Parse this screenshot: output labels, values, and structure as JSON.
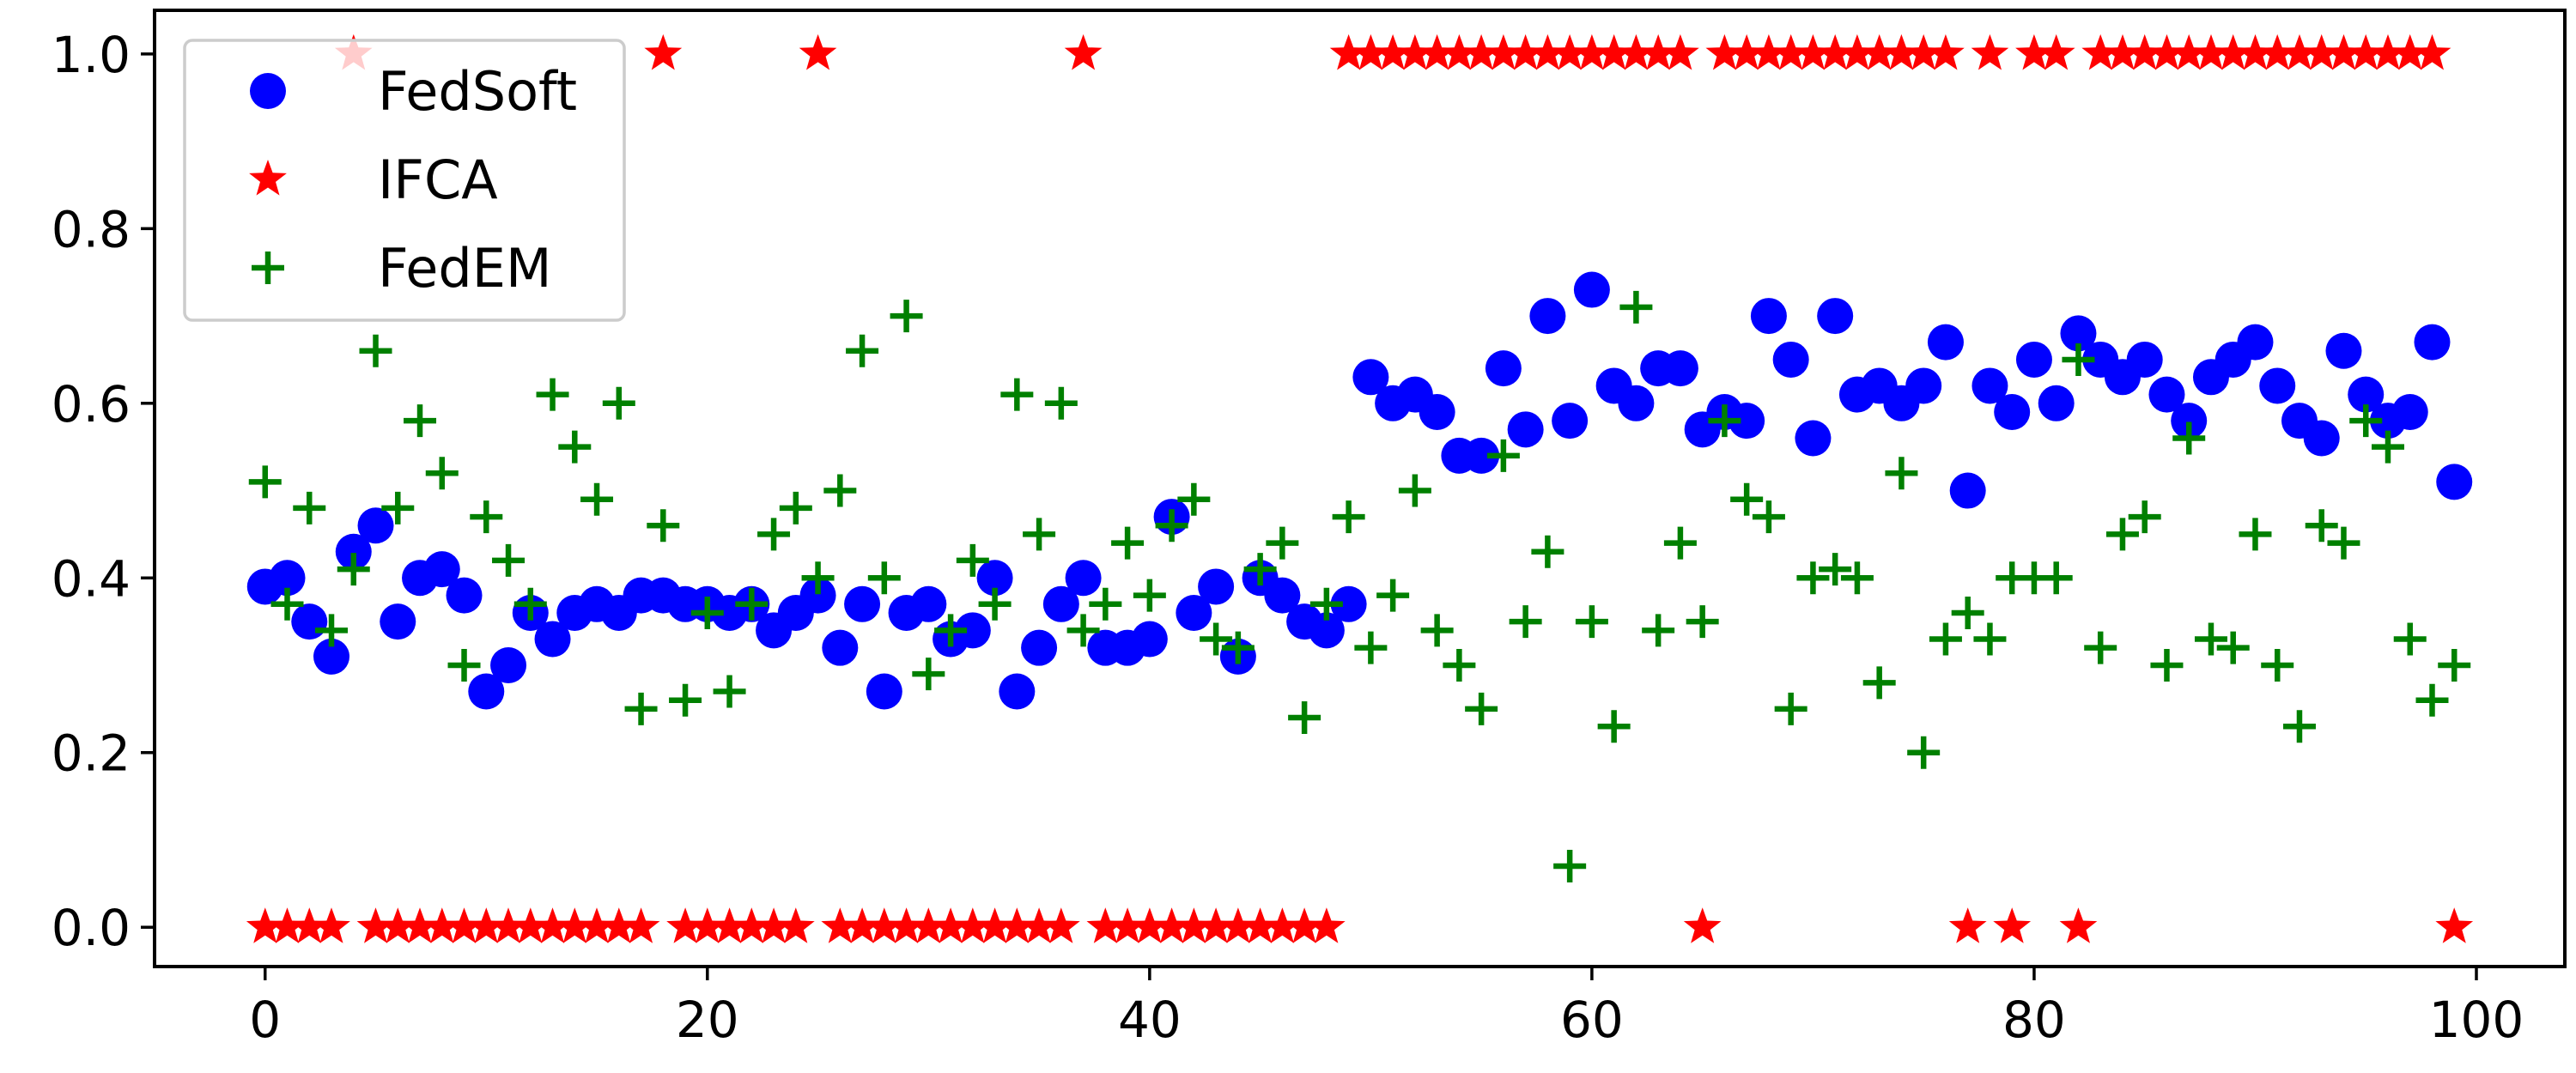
{
  "chart_data": {
    "type": "scatter",
    "title": "",
    "xlabel": "",
    "ylabel": "",
    "xlim": [
      -5,
      104
    ],
    "ylim": [
      -0.045,
      1.05
    ],
    "grid": false,
    "legend_position": "top-left",
    "x_ticks": [
      0,
      20,
      40,
      60,
      80,
      100
    ],
    "x_tick_labels": [
      "0",
      "20",
      "40",
      "60",
      "80",
      "100"
    ],
    "y_ticks": [
      0.0,
      0.2,
      0.4,
      0.6,
      0.8,
      1.0
    ],
    "y_tick_labels": [
      "0.0",
      "0.2",
      "0.4",
      "0.6",
      "0.8",
      "1.0"
    ],
    "x": [
      0,
      1,
      2,
      3,
      4,
      5,
      6,
      7,
      8,
      9,
      10,
      11,
      12,
      13,
      14,
      15,
      16,
      17,
      18,
      19,
      20,
      21,
      22,
      23,
      24,
      25,
      26,
      27,
      28,
      29,
      30,
      31,
      32,
      33,
      34,
      35,
      36,
      37,
      38,
      39,
      40,
      41,
      42,
      43,
      44,
      45,
      46,
      47,
      48,
      49,
      50,
      51,
      52,
      53,
      54,
      55,
      56,
      57,
      58,
      59,
      60,
      61,
      62,
      63,
      64,
      65,
      66,
      67,
      68,
      69,
      70,
      71,
      72,
      73,
      74,
      75,
      76,
      77,
      78,
      79,
      80,
      81,
      82,
      83,
      84,
      85,
      86,
      87,
      88,
      89,
      90,
      91,
      92,
      93,
      94,
      95,
      96,
      97,
      98,
      99
    ],
    "series": [
      {
        "name": "FedSoft",
        "marker": "circle",
        "color": "#0000ff",
        "values": [
          0.39,
          0.4,
          0.35,
          0.31,
          0.43,
          0.46,
          0.35,
          0.4,
          0.41,
          0.38,
          0.27,
          0.3,
          0.36,
          0.33,
          0.36,
          0.37,
          0.36,
          0.38,
          0.38,
          0.37,
          0.37,
          0.36,
          0.37,
          0.34,
          0.36,
          0.38,
          0.32,
          0.37,
          0.27,
          0.36,
          0.37,
          0.33,
          0.34,
          0.4,
          0.27,
          0.32,
          0.37,
          0.4,
          0.32,
          0.32,
          0.33,
          0.47,
          0.36,
          0.39,
          0.31,
          0.4,
          0.38,
          0.35,
          0.34,
          0.37,
          0.63,
          0.6,
          0.61,
          0.59,
          0.54,
          0.54,
          0.64,
          0.57,
          0.7,
          0.58,
          0.73,
          0.62,
          0.6,
          0.64,
          0.64,
          0.57,
          0.59,
          0.58,
          0.7,
          0.65,
          0.56,
          0.7,
          0.61,
          0.62,
          0.6,
          0.62,
          0.67,
          0.5,
          0.62,
          0.59,
          0.65,
          0.6,
          0.68,
          0.65,
          0.63,
          0.65,
          0.61,
          0.58,
          0.63,
          0.65,
          0.67,
          0.62,
          0.58,
          0.56,
          0.66,
          0.61,
          0.58,
          0.59,
          0.67,
          0.51
        ]
      },
      {
        "name": "IFCA",
        "marker": "star",
        "color": "#ff0000",
        "values": [
          0,
          0,
          0,
          0,
          1,
          0,
          0,
          0,
          0,
          0,
          0,
          0,
          0,
          0,
          0,
          0,
          0,
          0,
          1,
          0,
          0,
          0,
          0,
          0,
          0,
          1,
          0,
          0,
          0,
          0,
          0,
          0,
          0,
          0,
          0,
          0,
          0,
          1,
          0,
          0,
          0,
          0,
          0,
          0,
          0,
          0,
          0,
          0,
          0,
          1,
          1,
          1,
          1,
          1,
          1,
          1,
          1,
          1,
          1,
          1,
          1,
          1,
          1,
          1,
          1,
          0,
          1,
          1,
          1,
          1,
          1,
          1,
          1,
          1,
          1,
          1,
          1,
          0,
          1,
          0,
          1,
          1,
          0,
          1,
          1,
          1,
          1,
          1,
          1,
          1,
          1,
          1,
          1,
          1,
          1,
          1,
          1,
          1,
          1,
          0
        ]
      },
      {
        "name": "FedEM",
        "marker": "plus",
        "color": "#008000",
        "values": [
          0.51,
          0.37,
          0.48,
          0.34,
          0.41,
          0.66,
          0.48,
          0.58,
          0.52,
          0.3,
          0.47,
          0.42,
          0.37,
          0.61,
          0.55,
          0.49,
          0.6,
          0.25,
          0.46,
          0.26,
          0.36,
          0.27,
          0.37,
          0.45,
          0.48,
          0.4,
          0.5,
          0.66,
          0.4,
          0.7,
          0.29,
          0.34,
          0.42,
          0.37,
          0.61,
          0.45,
          0.6,
          0.34,
          0.37,
          0.44,
          0.38,
          0.46,
          0.49,
          0.33,
          0.32,
          0.41,
          0.44,
          0.24,
          0.37,
          0.47,
          0.32,
          0.38,
          0.5,
          0.34,
          0.3,
          0.25,
          0.54,
          0.35,
          0.43,
          0.07,
          0.35,
          0.23,
          0.71,
          0.34,
          0.44,
          0.35,
          0.58,
          0.49,
          0.47,
          0.25,
          0.4,
          0.41,
          0.4,
          0.28,
          0.52,
          0.2,
          0.33,
          0.36,
          0.33,
          0.4,
          0.4,
          0.4,
          0.65,
          0.32,
          0.45,
          0.47,
          0.3,
          0.56,
          0.33,
          0.32,
          0.45,
          0.3,
          0.23,
          0.46,
          0.44,
          0.58,
          0.55,
          0.33,
          0.26,
          0.3
        ]
      }
    ]
  }
}
